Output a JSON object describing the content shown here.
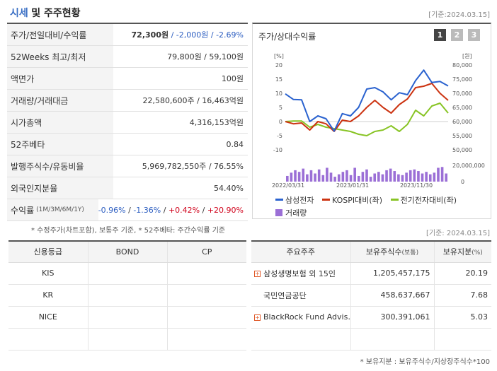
{
  "header": {
    "title_blue": "시세",
    "title_rest": "및 주주현황",
    "date": "[기준:2024.03.15]"
  },
  "quote_table": [
    {
      "label": "주가/전일대비/수익률",
      "price": "72,300원",
      "change": " / -2,000원 / ",
      "rate": "-2.69%"
    },
    {
      "label": "52Weeks 최고/최저",
      "value": "79,800원 / 59,100원"
    },
    {
      "label": "액면가",
      "value": "100원"
    },
    {
      "label": "거래량/거래대금",
      "value": "22,580,600주 / 16,463억원"
    },
    {
      "label": "시가총액",
      "value": "4,316,153억원"
    },
    {
      "label": "52주베타",
      "value": "0.84"
    },
    {
      "label": "발행주식수/유동비율",
      "value": "5,969,782,550주 / 76.55%"
    },
    {
      "label": "외국인지분율",
      "value": "54.40%"
    },
    {
      "label": "수익률",
      "label_small": "(1M/3M/6M/1Y)",
      "r1": "-0.96%",
      "r2": "-1.36%",
      "r3": "+0.42%",
      "r4": "+20.90%"
    }
  ],
  "quote_note": "* 수정주가(차트포함), 보통주 기준, * 52주베타: 주간수익률 기준",
  "chart_panel": {
    "title": "주가/상대수익률",
    "buttons": [
      "1",
      "2",
      "3"
    ],
    "left_unit": "[%]",
    "right_unit": "[원]",
    "legend": [
      "삼성전자",
      "KOSPI대비(좌)",
      "전기전자대비(좌)",
      "거래량"
    ],
    "colors": {
      "samsung": "#2a62cf",
      "kospi": "#cc3311",
      "elec": "#88c425",
      "volume": "#9b6fd6"
    }
  },
  "chart_data": {
    "type": "line",
    "x_ticks": [
      "2022/03/31",
      "2023/01/31",
      "2023/11/30"
    ],
    "left_ticks": [
      "20",
      "15",
      "10",
      "5",
      "0",
      "-5",
      "-10"
    ],
    "right_ticks": [
      "80,000",
      "75,000",
      "70,000",
      "65,000",
      "60,000",
      "55,000",
      "50,000"
    ],
    "volume_ticks": [
      "20,000,000",
      "0"
    ],
    "left_ylim": [
      -10,
      20
    ],
    "right_ylim": [
      50000,
      80000
    ],
    "series": [
      {
        "name": "삼성전자",
        "axis": "right",
        "values": [
          69800,
          67800,
          67700,
          60000,
          62000,
          61000,
          56600,
          62800,
          62000,
          65000,
          71500,
          72000,
          70500,
          67700,
          70200,
          69500,
          74500,
          78200,
          73800,
          74200,
          72600
        ]
      },
      {
        "name": "KOSPI대비(좌)",
        "axis": "left",
        "values": [
          0,
          -0.8,
          -0.5,
          -3,
          0,
          -0.8,
          -3.5,
          0.5,
          0,
          2,
          5,
          7.5,
          5,
          3,
          6,
          8,
          12,
          12.5,
          13.5,
          10,
          7.5
        ]
      },
      {
        "name": "전기전자대비(좌)",
        "axis": "left",
        "values": [
          0,
          0.2,
          0.2,
          -2,
          -1,
          -2,
          -2.5,
          -3,
          -3.5,
          -4.5,
          -5,
          -3.5,
          -3,
          -1.5,
          -3.5,
          -1,
          4,
          2,
          5.5,
          6.5,
          3
        ]
      },
      {
        "name": "거래량",
        "axis": "volume",
        "values": [
          7,
          11,
          14,
          12,
          16,
          9,
          14,
          10,
          15,
          8,
          17,
          11,
          6,
          9,
          12,
          14,
          8,
          17,
          7,
          12,
          15,
          6,
          10,
          12,
          9,
          14,
          16,
          13,
          9,
          8,
          11,
          14,
          15,
          13,
          10,
          12,
          9,
          11,
          17,
          18,
          10
        ]
      }
    ]
  },
  "credit_table": {
    "headers": [
      "신용등급",
      "BOND",
      "CP"
    ],
    "rows": [
      [
        "KIS",
        "",
        ""
      ],
      [
        "KR",
        "",
        ""
      ],
      [
        "NICE",
        "",
        ""
      ],
      [
        "",
        "",
        ""
      ]
    ]
  },
  "right_date": "[기준: 2024.03.15]",
  "holders_table": {
    "headers": {
      "h1": "주요주주",
      "h2": "보유주식수",
      "h2s": "(보통)",
      "h3": "보유지분",
      "h3s": "(%)"
    },
    "rows": [
      {
        "name": "삼성생명보험 외 15인",
        "shares": "1,205,457,175",
        "pct": "20.19",
        "expand": true
      },
      {
        "name": "국민연금공단",
        "shares": "458,637,667",
        "pct": "7.68",
        "expand": false
      },
      {
        "name": "BlackRock Fund Advis…",
        "shares": "300,391,061",
        "pct": "5.03",
        "expand": true
      },
      {
        "name": "",
        "shares": "",
        "pct": "",
        "expand": false
      }
    ]
  },
  "holders_note": "* 보유지분 : 보유주식수/지상장주식수*100"
}
